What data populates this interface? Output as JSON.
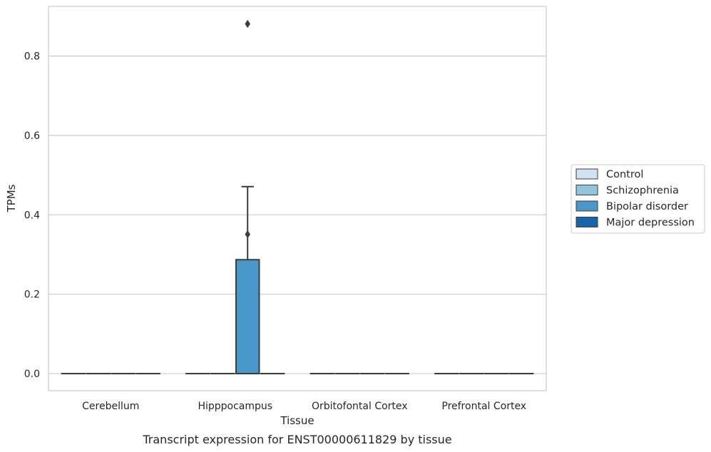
{
  "chart_data": {
    "type": "box",
    "xlabel": "Tissue",
    "ylabel": "TPMs",
    "caption": "Transcript expression for ENST00000611829 by tissue",
    "ylim": [
      -0.043,
      0.925
    ],
    "yticks": [
      "0.0",
      "0.2",
      "0.4",
      "0.6",
      "0.8"
    ],
    "grid": "horizontal",
    "legend_placement": "right",
    "categories": [
      "Cerebellum",
      "Hipppocampus",
      "Orbitofontal Cortex",
      "Prefrontal Cortex"
    ],
    "series": [
      {
        "name": "Control",
        "color": "#cfe1f2",
        "boxes": [
          {
            "q1": 0,
            "median": 0,
            "q3": 0,
            "whislo": 0,
            "whishi": 0,
            "fliers": []
          },
          {
            "q1": 0,
            "median": 0,
            "q3": 0,
            "whislo": 0,
            "whishi": 0,
            "fliers": []
          },
          {
            "q1": 0,
            "median": 0,
            "q3": 0,
            "whislo": 0,
            "whishi": 0,
            "fliers": []
          },
          {
            "q1": 0,
            "median": 0,
            "q3": 0,
            "whislo": 0,
            "whishi": 0,
            "fliers": []
          }
        ]
      },
      {
        "name": "Schizophrenia",
        "color": "#93c4de",
        "boxes": [
          {
            "q1": 0,
            "median": 0,
            "q3": 0,
            "whislo": 0,
            "whishi": 0,
            "fliers": []
          },
          {
            "q1": 0,
            "median": 0,
            "q3": 0,
            "whislo": 0,
            "whishi": 0,
            "fliers": []
          },
          {
            "q1": 0,
            "median": 0,
            "q3": 0,
            "whislo": 0,
            "whishi": 0,
            "fliers": []
          },
          {
            "q1": 0,
            "median": 0,
            "q3": 0,
            "whislo": 0,
            "whishi": 0,
            "fliers": []
          }
        ]
      },
      {
        "name": "Bipolar disorder",
        "color": "#4a98c9",
        "boxes": [
          {
            "q1": 0,
            "median": 0,
            "q3": 0,
            "whislo": 0,
            "whishi": 0,
            "fliers": []
          },
          {
            "q1": 0,
            "median": 0,
            "q3": 0.287,
            "whislo": 0,
            "whishi": 0.471,
            "fliers": [
              0.351,
              0.881
            ]
          },
          {
            "q1": 0,
            "median": 0,
            "q3": 0,
            "whislo": 0,
            "whishi": 0,
            "fliers": []
          },
          {
            "q1": 0,
            "median": 0,
            "q3": 0,
            "whislo": 0,
            "whishi": 0,
            "fliers": []
          }
        ]
      },
      {
        "name": "Major depression",
        "color": "#1764ab",
        "boxes": [
          {
            "q1": 0,
            "median": 0,
            "q3": 0,
            "whislo": 0,
            "whishi": 0,
            "fliers": []
          },
          {
            "q1": 0,
            "median": 0,
            "q3": 0,
            "whislo": 0,
            "whishi": 0,
            "fliers": []
          },
          {
            "q1": 0,
            "median": 0,
            "q3": 0,
            "whislo": 0,
            "whishi": 0,
            "fliers": []
          },
          {
            "q1": 0,
            "median": 0,
            "q3": 0,
            "whislo": 0,
            "whishi": 0,
            "fliers": []
          }
        ]
      }
    ]
  },
  "colors": {
    "grid": "#cccccc",
    "frame": "#cccccc",
    "line": "#3d3d3d",
    "text": "#262626"
  }
}
